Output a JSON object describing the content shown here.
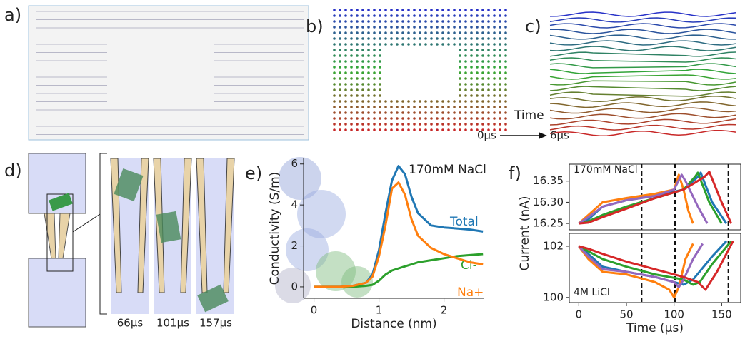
{
  "figure": {
    "panel_labels": [
      "a)",
      "b)",
      "c)",
      "d)",
      "e)",
      "f)"
    ],
    "time_label": "Time",
    "time_start": "0μs",
    "time_end": "6μs",
    "snapshot_labels": [
      "66μs",
      "101μs",
      "157μs"
    ]
  },
  "chart_data": [
    {
      "type": "line",
      "annotation": "170mM NaCl",
      "xlabel": "Distance (nm)",
      "ylabel": "Conductivity (S/m)",
      "xlim": [
        -0.16,
        2.62
      ],
      "ylim": [
        -0.56,
        6.27
      ],
      "xticks": [
        0,
        1,
        2
      ],
      "yticks": [
        0,
        2,
        4,
        6
      ],
      "series": [
        {
          "name": "Total",
          "color": "#1f77b4",
          "x": [
            0,
            0.2,
            0.4,
            0.6,
            0.8,
            0.9,
            1.0,
            1.1,
            1.2,
            1.3,
            1.4,
            1.5,
            1.6,
            1.8,
            2.0,
            2.2,
            2.4,
            2.6
          ],
          "values": [
            0,
            0,
            0,
            0.05,
            0.2,
            0.6,
            1.8,
            3.6,
            5.2,
            5.9,
            5.5,
            4.4,
            3.6,
            3.0,
            2.9,
            2.85,
            2.8,
            2.7
          ]
        },
        {
          "name": "Cl-",
          "color": "#2ca02c",
          "x": [
            0,
            0.2,
            0.4,
            0.6,
            0.8,
            0.9,
            1.0,
            1.1,
            1.2,
            1.3,
            1.4,
            1.5,
            1.6,
            1.8,
            2.0,
            2.2,
            2.4,
            2.6
          ],
          "values": [
            0,
            0,
            0,
            0,
            0.05,
            0.1,
            0.3,
            0.6,
            0.8,
            0.9,
            1.0,
            1.1,
            1.2,
            1.3,
            1.4,
            1.5,
            1.55,
            1.6
          ]
        },
        {
          "name": "Na+",
          "color": "#ff7f0e",
          "x": [
            0,
            0.2,
            0.4,
            0.6,
            0.8,
            0.9,
            1.0,
            1.1,
            1.2,
            1.3,
            1.4,
            1.5,
            1.6,
            1.8,
            2.0,
            2.2,
            2.4,
            2.6
          ],
          "values": [
            0,
            0,
            0,
            0.05,
            0.2,
            0.5,
            1.5,
            3.0,
            4.8,
            5.1,
            4.5,
            3.3,
            2.5,
            1.9,
            1.6,
            1.4,
            1.2,
            1.1
          ]
        }
      ]
    },
    {
      "type": "line",
      "annotation": "170mM NaCl",
      "ylabel": "Current (nA)",
      "xlim": [
        -10,
        170
      ],
      "ylim": [
        16.235,
        16.39
      ],
      "yticks": [
        16.25,
        {
          "value": 16.3,
          "label": "16.30"
        },
        16.35
      ],
      "vlines": [
        66,
        101,
        157
      ],
      "series": [
        {
          "color": "#1f77b4",
          "x": [
            0,
            10,
            25,
            50,
            80,
            110,
            125,
            128,
            140,
            155
          ],
          "values": [
            16.25,
            16.26,
            16.29,
            16.305,
            16.315,
            16.33,
            16.36,
            16.37,
            16.3,
            16.25
          ]
        },
        {
          "color": "#ff7f0e",
          "x": [
            0,
            10,
            25,
            50,
            80,
            100,
            105,
            110,
            115,
            120
          ],
          "values": [
            16.25,
            16.27,
            16.3,
            16.31,
            16.32,
            16.33,
            16.365,
            16.33,
            16.28,
            16.25
          ]
        },
        {
          "color": "#2ca02c",
          "x": [
            0,
            10,
            25,
            50,
            80,
            110,
            122,
            125,
            137,
            150
          ],
          "values": [
            16.25,
            16.255,
            16.27,
            16.29,
            16.31,
            16.33,
            16.36,
            16.37,
            16.3,
            16.25
          ]
        },
        {
          "color": "#9467bd",
          "x": [
            0,
            10,
            25,
            50,
            80,
            100,
            108,
            112,
            125,
            135
          ],
          "values": [
            16.25,
            16.265,
            16.29,
            16.305,
            16.315,
            16.33,
            16.365,
            16.35,
            16.29,
            16.25
          ]
        },
        {
          "color": "#d62728",
          "x": [
            0,
            10,
            25,
            50,
            80,
            110,
            132,
            137,
            150,
            160
          ],
          "values": [
            16.25,
            16.252,
            16.265,
            16.285,
            16.31,
            16.33,
            16.36,
            16.372,
            16.3,
            16.25
          ]
        }
      ]
    },
    {
      "type": "line",
      "annotation": "4M LiCl",
      "xlabel": "Time (μs)",
      "xlim": [
        -10,
        170
      ],
      "ylim": [
        99.8,
        102.5
      ],
      "xticks": [
        0,
        50,
        100,
        150
      ],
      "yticks": [
        100,
        102
      ],
      "vlines": [
        66,
        101,
        157
      ],
      "series": [
        {
          "color": "#1f77b4",
          "x": [
            0,
            10,
            25,
            50,
            80,
            100,
            110,
            120,
            140,
            155
          ],
          "values": [
            102,
            101.7,
            101.2,
            101.0,
            100.8,
            100.6,
            100.5,
            100.7,
            101.6,
            102.2
          ]
        },
        {
          "color": "#ff7f0e",
          "x": [
            0,
            10,
            25,
            50,
            80,
            95,
            100,
            105,
            112,
            120
          ],
          "values": [
            102,
            101.5,
            101.0,
            100.9,
            100.6,
            100.3,
            100.0,
            100.4,
            101.5,
            102.1
          ]
        },
        {
          "color": "#2ca02c",
          "x": [
            0,
            10,
            25,
            50,
            80,
            110,
            120,
            127,
            140,
            160
          ],
          "values": [
            102,
            101.8,
            101.5,
            101.2,
            100.9,
            100.7,
            100.5,
            100.6,
            101.3,
            102.2
          ]
        },
        {
          "color": "#9467bd",
          "x": [
            0,
            10,
            25,
            50,
            80,
            100,
            105,
            110,
            120,
            130
          ],
          "values": [
            102,
            101.6,
            101.1,
            101.0,
            100.8,
            100.6,
            100.4,
            100.7,
            101.5,
            102.1
          ]
        },
        {
          "color": "#d62728",
          "x": [
            0,
            10,
            25,
            50,
            80,
            110,
            125,
            133,
            145,
            162
          ],
          "values": [
            102,
            101.9,
            101.7,
            101.4,
            101.1,
            100.8,
            100.6,
            100.3,
            101.0,
            102.2
          ]
        }
      ]
    }
  ]
}
